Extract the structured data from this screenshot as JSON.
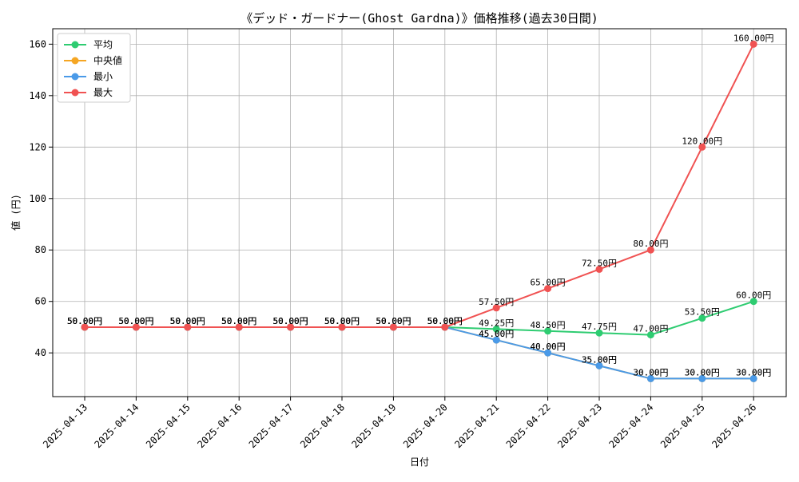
{
  "chart_data": {
    "type": "line",
    "title": "《デッド・ガードナー(Ghost Gardna)》価格推移(過去30日間)",
    "xlabel": "日付",
    "ylabel": "値 (円)",
    "ylim": [
      23,
      166
    ],
    "yticks": [
      40,
      60,
      80,
      100,
      120,
      140,
      160
    ],
    "grid": true,
    "legend_position": "top-left",
    "label_suffix": "円",
    "categories": [
      "2025-04-13",
      "2025-04-14",
      "2025-04-15",
      "2025-04-16",
      "2025-04-17",
      "2025-04-18",
      "2025-04-19",
      "2025-04-20",
      "2025-04-21",
      "2025-04-22",
      "2025-04-23",
      "2025-04-24",
      "2025-04-25",
      "2025-04-26"
    ],
    "series": [
      {
        "name": "平均",
        "color": "#2ecc71",
        "values": [
          50,
          50,
          50,
          50,
          50,
          50,
          50,
          50,
          49.25,
          48.5,
          47.75,
          47,
          53.5,
          60
        ],
        "labels": [
          "50.00円",
          "50.00円",
          "50.00円",
          "50.00円",
          "50.00円",
          "50.00円",
          "50.00円",
          "50.00円",
          "49.25円",
          "48.50円",
          "47.75円",
          "47.00円",
          "53.50円",
          "60.00円"
        ]
      },
      {
        "name": "中央値",
        "color": "#f5a623",
        "values": [
          50,
          50,
          50,
          50,
          50,
          50,
          50,
          50,
          45,
          40,
          35,
          30,
          30,
          30
        ],
        "labels": [
          "50.00円",
          "50.00円",
          "50.00円",
          "50.00円",
          "50.00円",
          "50.00円",
          "50.00円",
          "50.00円",
          "45.00円",
          "40.00円",
          "35.00円",
          "30.00円",
          "30.00円",
          "30.00円"
        ]
      },
      {
        "name": "最小",
        "color": "#4a9ae8",
        "values": [
          50,
          50,
          50,
          50,
          50,
          50,
          50,
          50,
          45,
          40,
          35,
          30,
          30,
          30
        ],
        "labels": [
          "50.00円",
          "50.00円",
          "50.00円",
          "50.00円",
          "50.00円",
          "50.00円",
          "50.00円",
          "50.00円",
          "45.00円",
          "40.00円",
          "35.00円",
          "30.00円",
          "30.00円",
          "30.00円"
        ]
      },
      {
        "name": "最大",
        "color": "#f05252",
        "values": [
          50,
          50,
          50,
          50,
          50,
          50,
          50,
          50,
          57.5,
          65,
          72.5,
          80,
          120,
          160
        ],
        "labels": [
          "50.00円",
          "50.00円",
          "50.00円",
          "50.00円",
          "50.00円",
          "50.00円",
          "50.00円",
          "50.00円",
          "57.50円",
          "65.00円",
          "72.50円",
          "80.00円",
          "120.00円",
          "160.00円"
        ]
      }
    ]
  }
}
